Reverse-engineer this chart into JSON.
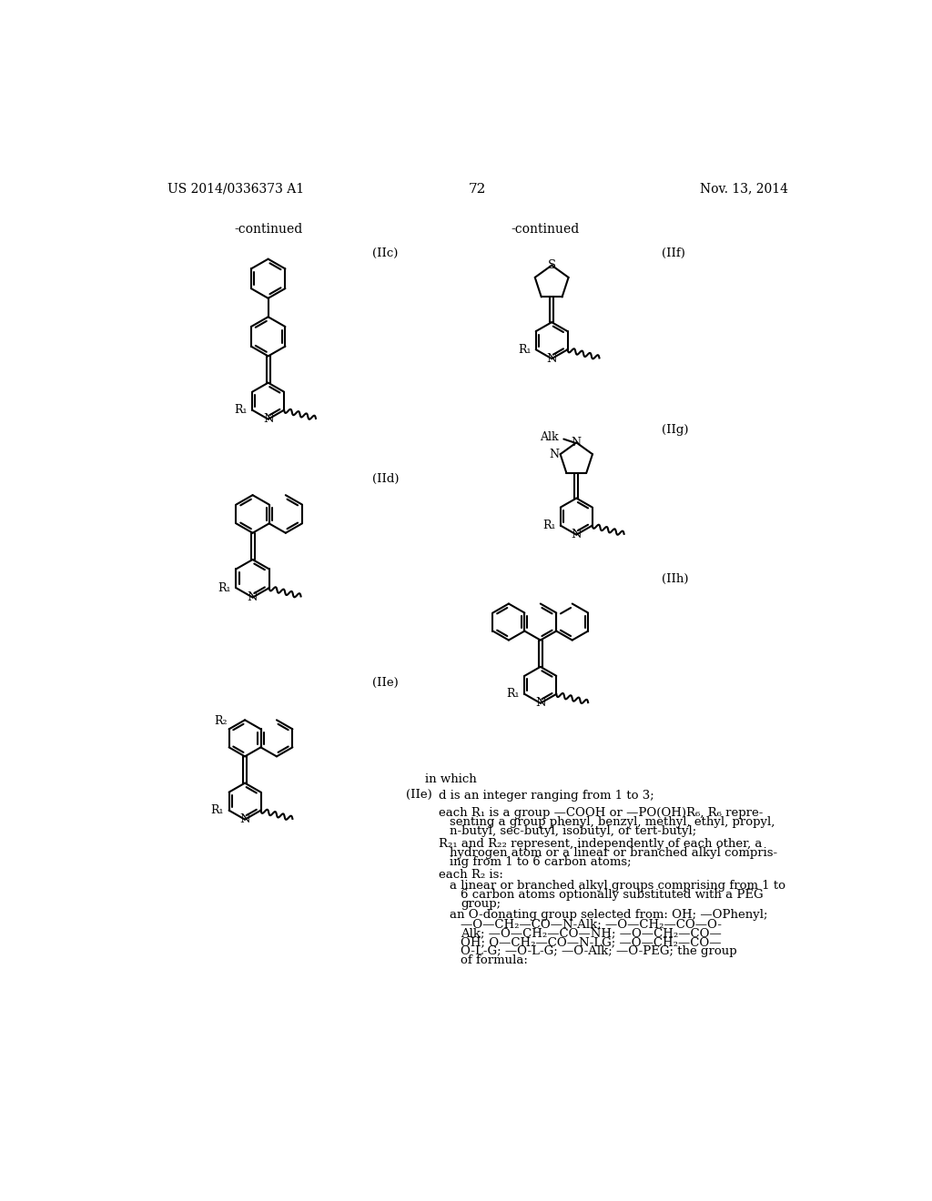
{
  "page_header_left": "US 2014/0336373 A1",
  "page_header_right": "Nov. 13, 2014",
  "page_number": "72",
  "background_color": "#ffffff",
  "figsize": [
    10.24,
    13.2
  ],
  "dpi": 100
}
